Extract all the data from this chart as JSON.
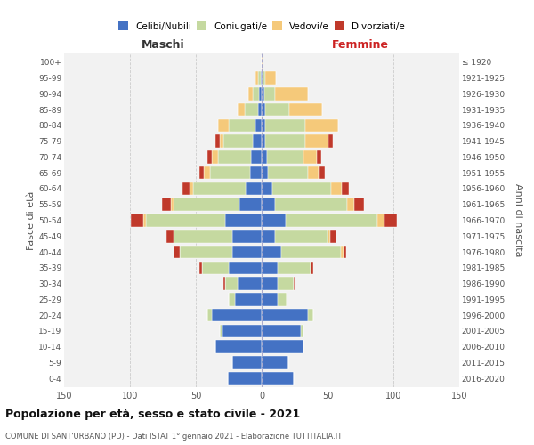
{
  "age_groups": [
    "0-4",
    "5-9",
    "10-14",
    "15-19",
    "20-24",
    "25-29",
    "30-34",
    "35-39",
    "40-44",
    "45-49",
    "50-54",
    "55-59",
    "60-64",
    "65-69",
    "70-74",
    "75-79",
    "80-84",
    "85-89",
    "90-94",
    "95-99",
    "100+"
  ],
  "birth_years": [
    "2016-2020",
    "2011-2015",
    "2006-2010",
    "2001-2005",
    "1996-2000",
    "1991-1995",
    "1986-1990",
    "1981-1985",
    "1976-1980",
    "1971-1975",
    "1966-1970",
    "1961-1965",
    "1956-1960",
    "1951-1955",
    "1946-1950",
    "1941-1945",
    "1936-1940",
    "1931-1935",
    "1926-1930",
    "1921-1925",
    "≤ 1920"
  ],
  "colors": {
    "celibe": "#4472c4",
    "coniugato": "#c5d9a0",
    "vedovo": "#f5c97a",
    "divorziato": "#c0392b"
  },
  "maschi": {
    "celibe": [
      26,
      22,
      35,
      30,
      38,
      20,
      18,
      25,
      22,
      22,
      28,
      17,
      12,
      9,
      8,
      7,
      5,
      3,
      2,
      1,
      0
    ],
    "coniugato": [
      0,
      0,
      0,
      2,
      3,
      5,
      10,
      20,
      40,
      45,
      60,
      50,
      40,
      30,
      25,
      22,
      20,
      10,
      5,
      2,
      0
    ],
    "vedovo": [
      0,
      0,
      0,
      0,
      0,
      0,
      0,
      0,
      0,
      0,
      2,
      2,
      3,
      5,
      5,
      3,
      8,
      5,
      3,
      2,
      0
    ],
    "divorziato": [
      0,
      0,
      0,
      0,
      0,
      0,
      1,
      2,
      5,
      5,
      9,
      7,
      5,
      3,
      3,
      3,
      0,
      0,
      0,
      0,
      0
    ]
  },
  "femmine": {
    "nubile": [
      24,
      20,
      32,
      30,
      35,
      12,
      12,
      12,
      15,
      10,
      18,
      10,
      8,
      5,
      4,
      3,
      3,
      3,
      2,
      1,
      0
    ],
    "coniugato": [
      0,
      0,
      0,
      2,
      4,
      7,
      12,
      25,
      45,
      40,
      70,
      55,
      45,
      30,
      28,
      30,
      30,
      18,
      8,
      2,
      0
    ],
    "vedovo": [
      0,
      0,
      0,
      0,
      0,
      0,
      0,
      0,
      2,
      2,
      5,
      5,
      8,
      8,
      10,
      18,
      25,
      25,
      25,
      8,
      1
    ],
    "divorziato": [
      0,
      0,
      0,
      0,
      0,
      0,
      1,
      2,
      2,
      5,
      10,
      8,
      5,
      5,
      3,
      3,
      0,
      0,
      0,
      0,
      0
    ]
  },
  "xlim": 150,
  "background_color": "#f2f2f2",
  "grid_color": "#cccccc",
  "title": "Popolazione per età, sesso e stato civile - 2021",
  "subtitle": "COMUNE DI SANT'URBANO (PD) - Dati ISTAT 1° gennaio 2021 - Elaborazione TUTTITALIA.IT",
  "ylabel_left": "Fasce di età",
  "ylabel_right": "Anni di nascita",
  "xlabel_left": "Maschi",
  "xlabel_right": "Femmine"
}
